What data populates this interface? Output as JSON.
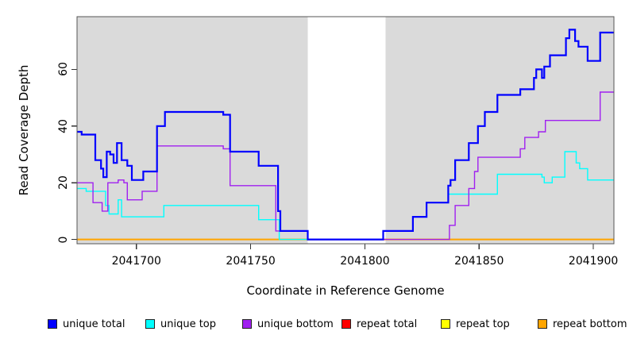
{
  "figure": {
    "xlabel": "Coordinate in Reference Genome",
    "ylabel": "Read Coverage Depth"
  },
  "legend": {
    "items": [
      {
        "label": "unique total",
        "color": "#0000ff"
      },
      {
        "label": "unique top",
        "color": "#00ffff"
      },
      {
        "label": "unique bottom",
        "color": "#a020f0"
      },
      {
        "label": "repeat total",
        "color": "#ff0000"
      },
      {
        "label": "repeat top",
        "color": "#ffff00"
      },
      {
        "label": "repeat bottom",
        "color": "#ffa500"
      }
    ]
  },
  "chart_data": {
    "type": "line",
    "step": "after",
    "title": "",
    "xlabel": "Coordinate in Reference Genome",
    "ylabel": "Read Coverage Depth",
    "xlim": [
      2041674,
      2041909
    ],
    "ylim": [
      -1.5,
      78.6
    ],
    "grid": false,
    "legend_position": "bottom",
    "plot_background": "#dadada",
    "no_data_region": {
      "from": 2041775,
      "to": 2041809,
      "color": "#ffffff"
    },
    "x_ticks": [
      {
        "value": 2041700,
        "label": "2041700"
      },
      {
        "value": 2041750,
        "label": "2041750"
      },
      {
        "value": 2041800,
        "label": "2041800"
      },
      {
        "value": 2041850,
        "label": "2041850"
      },
      {
        "value": 2041900,
        "label": "2041900"
      }
    ],
    "y_ticks": [
      {
        "value": 0,
        "label": "0"
      },
      {
        "value": 20,
        "label": "20"
      },
      {
        "value": 40,
        "label": "40"
      },
      {
        "value": 60,
        "label": "60"
      }
    ],
    "series": [
      {
        "name": "repeat total",
        "color": "#ff0000",
        "lwd": 1.4,
        "points": [
          [
            2041674,
            0
          ],
          [
            2041909,
            0
          ]
        ]
      },
      {
        "name": "repeat top",
        "color": "#ffff00",
        "lwd": 1.4,
        "points": [
          [
            2041674,
            0
          ],
          [
            2041909,
            0
          ]
        ]
      },
      {
        "name": "repeat bottom",
        "color": "#ffa500",
        "lwd": 2,
        "points": [
          [
            2041674,
            0
          ],
          [
            2041909,
            0
          ]
        ]
      },
      {
        "name": "unique top",
        "color": "#00ffff",
        "lwd": 1.4,
        "points": [
          [
            2041674,
            18
          ],
          [
            2041678,
            17
          ],
          [
            2041686.5,
            12
          ],
          [
            2041688,
            9
          ],
          [
            2041692,
            14
          ],
          [
            2041693.5,
            8
          ],
          [
            2041712,
            12
          ],
          [
            2041753.5,
            7
          ],
          [
            2041762.5,
            0
          ],
          [
            2041808,
            3
          ],
          [
            2041821,
            8
          ],
          [
            2041827,
            13
          ],
          [
            2041836.5,
            16
          ],
          [
            2041858,
            23
          ],
          [
            2041877.5,
            22
          ],
          [
            2041878.5,
            20
          ],
          [
            2041882,
            22
          ],
          [
            2041887.5,
            31
          ],
          [
            2041892.5,
            27
          ],
          [
            2041894,
            25
          ],
          [
            2041897.5,
            21
          ],
          [
            2041909,
            21
          ]
        ]
      },
      {
        "name": "unique bottom",
        "color": "#a020f0",
        "lwd": 1.4,
        "points": [
          [
            2041674,
            20
          ],
          [
            2041681,
            13
          ],
          [
            2041685,
            10
          ],
          [
            2041687.5,
            20
          ],
          [
            2041692,
            21
          ],
          [
            2041694.5,
            20
          ],
          [
            2041696,
            14
          ],
          [
            2041702.5,
            17
          ],
          [
            2041709,
            33
          ],
          [
            2041738,
            32
          ],
          [
            2041741,
            19
          ],
          [
            2041761,
            3
          ],
          [
            2041775,
            0
          ],
          [
            2041837,
            5
          ],
          [
            2041839.5,
            12
          ],
          [
            2041845.5,
            18
          ],
          [
            2041848,
            24
          ],
          [
            2041849.5,
            29
          ],
          [
            2041868,
            32
          ],
          [
            2041870,
            36
          ],
          [
            2041876,
            38
          ],
          [
            2041879,
            42
          ],
          [
            2041903,
            52
          ],
          [
            2041909,
            52
          ]
        ]
      },
      {
        "name": "unique total",
        "color": "#0000ff",
        "lwd": 2.2,
        "points": [
          [
            2041674,
            38
          ],
          [
            2041676,
            37
          ],
          [
            2041682,
            28
          ],
          [
            2041684.5,
            25
          ],
          [
            2041685.5,
            22
          ],
          [
            2041687,
            31
          ],
          [
            2041688.5,
            30
          ],
          [
            2041690,
            27
          ],
          [
            2041691.5,
            34
          ],
          [
            2041693.5,
            28
          ],
          [
            2041696,
            26
          ],
          [
            2041698,
            21
          ],
          [
            2041703,
            24
          ],
          [
            2041709,
            40
          ],
          [
            2041712.5,
            45
          ],
          [
            2041738,
            44
          ],
          [
            2041741,
            31
          ],
          [
            2041753.5,
            26
          ],
          [
            2041762,
            10
          ],
          [
            2041763,
            3
          ],
          [
            2041775,
            0
          ],
          [
            2041808,
            3
          ],
          [
            2041821,
            8
          ],
          [
            2041827,
            13
          ],
          [
            2041836.5,
            19
          ],
          [
            2041837.5,
            21
          ],
          [
            2041839.5,
            28
          ],
          [
            2041845.5,
            34
          ],
          [
            2041849.5,
            40
          ],
          [
            2041852.5,
            45
          ],
          [
            2041858,
            51
          ],
          [
            2041868,
            53
          ],
          [
            2041874,
            57
          ],
          [
            2041875,
            60
          ],
          [
            2041877.5,
            57
          ],
          [
            2041878.5,
            61
          ],
          [
            2041881,
            65
          ],
          [
            2041888,
            71
          ],
          [
            2041889.5,
            74
          ],
          [
            2041892,
            70
          ],
          [
            2041893.5,
            68
          ],
          [
            2041897.5,
            63
          ],
          [
            2041903,
            73
          ],
          [
            2041909,
            73
          ]
        ]
      }
    ]
  }
}
